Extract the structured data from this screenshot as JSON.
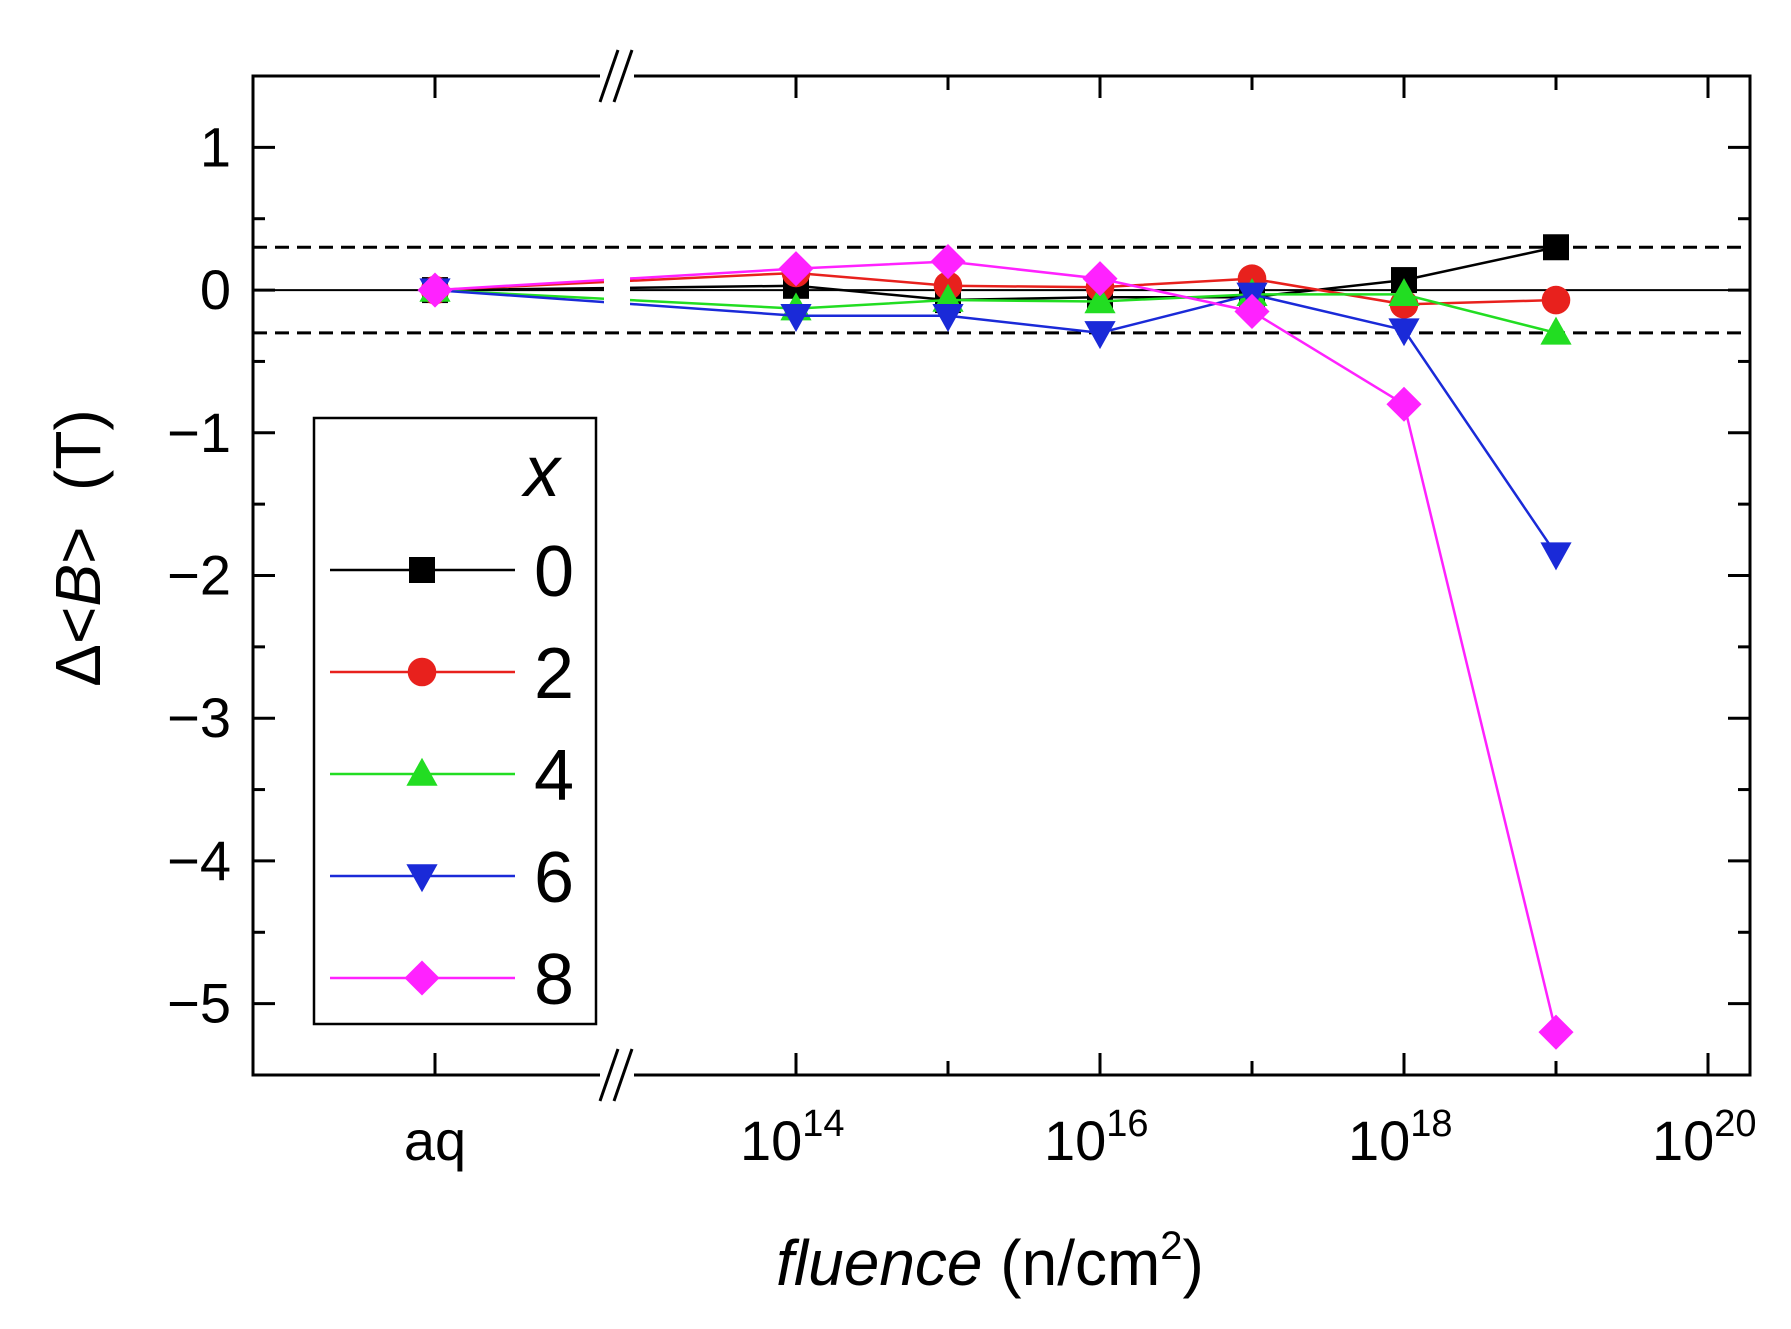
{
  "chart_data": {
    "type": "line",
    "title": "",
    "xlabel": {
      "italic": "fluence",
      "rest": " (n/cm",
      "sup": "2",
      "close": ")"
    },
    "ylabel": {
      "delta": "Δ<",
      "italic": "B",
      "rest": ">  (T)"
    },
    "x_scale": "log10 with axis break",
    "x_categories": [
      "aq"
    ],
    "x_ticks": [
      {
        "label": "aq",
        "base": "",
        "exp": "",
        "logx": null
      },
      {
        "label": "",
        "base": "10",
        "exp": "14",
        "logx": 14
      },
      {
        "label": "",
        "base": "10",
        "exp": "16",
        "logx": 16
      },
      {
        "label": "",
        "base": "10",
        "exp": "18",
        "logx": 18
      },
      {
        "label": "",
        "base": "10",
        "exp": "20",
        "logx": 20
      }
    ],
    "ylim": [
      -5.5,
      1.5
    ],
    "y_ticks": [
      {
        "value": 1,
        "label": "1"
      },
      {
        "value": 0,
        "label": "0"
      },
      {
        "value": -1,
        "label": "−1"
      },
      {
        "value": -2,
        "label": "−2"
      },
      {
        "value": -3,
        "label": "−3"
      },
      {
        "value": -4,
        "label": "−4"
      },
      {
        "value": -5,
        "label": "−5"
      }
    ],
    "reference_lines": [
      {
        "y": 0.3,
        "style": "dashed"
      },
      {
        "y": -0.3,
        "style": "dashed"
      },
      {
        "y": 0,
        "style": "solid"
      }
    ],
    "x_points": [
      "aq",
      "1e14",
      "1e15",
      "1e16",
      "1e17",
      "1e18",
      "1e19"
    ],
    "x_points_log": [
      null,
      14,
      15,
      16,
      17,
      18,
      19
    ],
    "legend": {
      "title": "x",
      "position": "left"
    },
    "series": [
      {
        "name": "0",
        "color": "#000000",
        "marker": "square",
        "values": [
          0,
          0.03,
          -0.07,
          -0.05,
          -0.05,
          0.07,
          0.3
        ]
      },
      {
        "name": "2",
        "color": "#e8211d",
        "marker": "circle",
        "values": [
          0,
          0.12,
          0.03,
          0.02,
          0.08,
          -0.1,
          -0.07
        ]
      },
      {
        "name": "4",
        "color": "#22dd22",
        "marker": "triangle-up",
        "values": [
          0,
          -0.13,
          -0.07,
          -0.08,
          -0.03,
          -0.03,
          -0.3
        ]
      },
      {
        "name": "6",
        "color": "#1a2ad8",
        "marker": "triangle-down",
        "values": [
          0,
          -0.18,
          -0.18,
          -0.3,
          -0.03,
          -0.28,
          -1.85
        ]
      },
      {
        "name": "8",
        "color": "#ff22ff",
        "marker": "diamond",
        "values": [
          0,
          0.15,
          0.2,
          0.08,
          -0.15,
          -0.8,
          -5.2
        ]
      }
    ]
  }
}
